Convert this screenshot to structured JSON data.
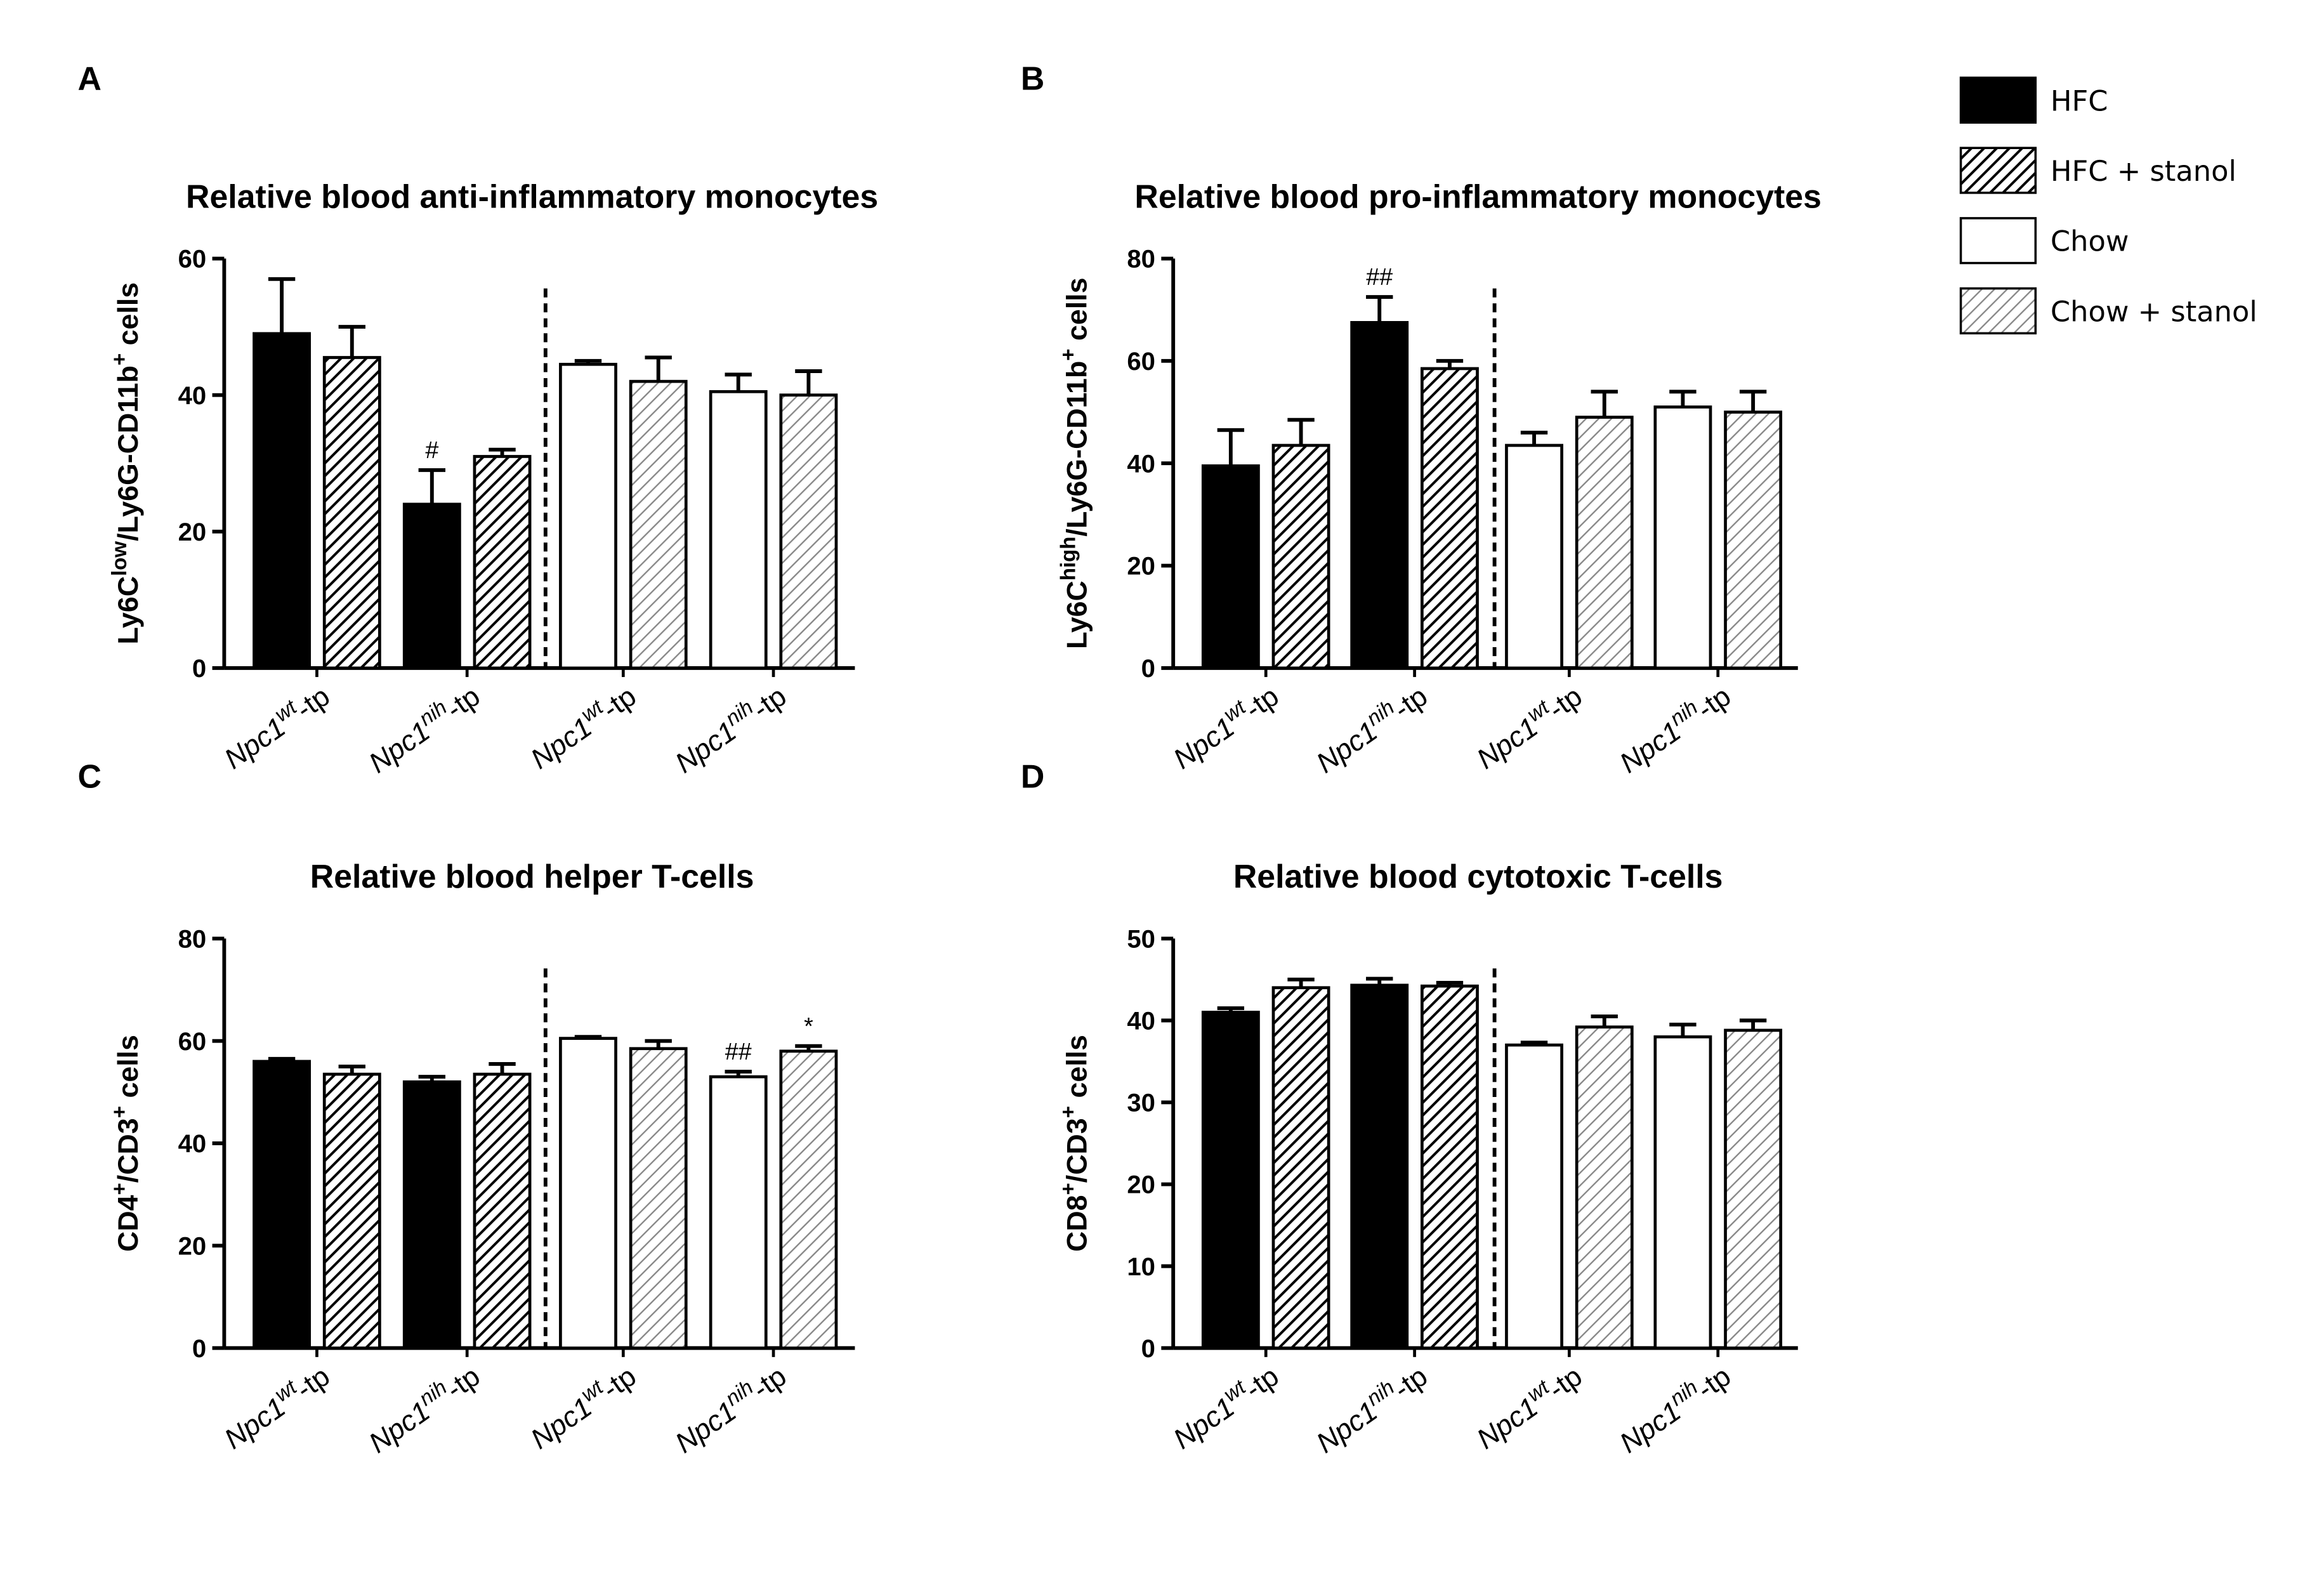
{
  "legend": [
    {
      "name": "HFC",
      "color": "#000000",
      "hatch": false
    },
    {
      "name": "HFC + stanol",
      "color": "#000000",
      "hatch": true
    },
    {
      "name": "Chow",
      "color": "#ffffff",
      "hatch": false
    },
    {
      "name": "Chow + stanol",
      "color": "#888888",
      "hatch": true
    }
  ],
  "chart_data": [
    {
      "type": "bar",
      "panel": "A",
      "title": "Relative blood anti-inflammatory monocytes",
      "ylabel": [
        {
          "text": "Ly6C"
        },
        {
          "text": "low",
          "sup": true
        },
        {
          "text": "/Ly6G-CD11b"
        },
        {
          "text": "+",
          "sup": true
        },
        {
          "text": " cells"
        }
      ],
      "categories": [
        {
          "gene": "Npc1",
          "allele": "wt",
          "suffix": "-tp"
        },
        {
          "gene": "Npc1",
          "allele": "nih",
          "suffix": "-tp"
        },
        {
          "gene": "Npc1",
          "allele": "wt",
          "suffix": "-tp"
        },
        {
          "gene": "Npc1",
          "allele": "nih",
          "suffix": "-tp"
        }
      ],
      "ylim": [
        0,
        60
      ],
      "yticks": [
        0,
        20,
        40,
        60
      ],
      "series": [
        {
          "values": [
            49,
            24,
            null,
            null
          ],
          "errors": [
            8,
            5,
            null,
            null
          ],
          "markers": [
            null,
            "#",
            null,
            null
          ]
        },
        {
          "values": [
            45.5,
            31,
            null,
            null
          ],
          "errors": [
            4.5,
            1,
            null,
            null
          ],
          "markers": [
            null,
            null,
            null,
            null
          ]
        },
        {
          "values": [
            null,
            null,
            44.5,
            40.5
          ],
          "errors": [
            null,
            null,
            0.5,
            2.5
          ],
          "markers": [
            null,
            null,
            null,
            null
          ]
        },
        {
          "values": [
            null,
            null,
            42,
            40
          ],
          "errors": [
            null,
            null,
            3.5,
            3.5
          ],
          "markers": [
            null,
            null,
            null,
            null
          ]
        }
      ]
    },
    {
      "type": "bar",
      "panel": "B",
      "title": "Relative blood pro-inflammatory monocytes",
      "ylabel": [
        {
          "text": "Ly6C"
        },
        {
          "text": "high",
          "sup": true
        },
        {
          "text": "/Ly6G-CD11b"
        },
        {
          "text": "+",
          "sup": true
        },
        {
          "text": " cells"
        }
      ],
      "categories": [
        {
          "gene": "Npc1",
          "allele": "wt",
          "suffix": "-tp"
        },
        {
          "gene": "Npc1",
          "allele": "nih",
          "suffix": "-tp"
        },
        {
          "gene": "Npc1",
          "allele": "wt",
          "suffix": "-tp"
        },
        {
          "gene": "Npc1",
          "allele": "nih",
          "suffix": "-tp"
        }
      ],
      "ylim": [
        0,
        80
      ],
      "yticks": [
        0,
        20,
        40,
        60,
        80
      ],
      "series": [
        {
          "values": [
            39.5,
            67.5,
            null,
            null
          ],
          "errors": [
            7,
            5,
            null,
            null
          ],
          "markers": [
            null,
            "##",
            null,
            null
          ]
        },
        {
          "values": [
            43.5,
            58.5,
            null,
            null
          ],
          "errors": [
            5,
            1.5,
            null,
            null
          ],
          "markers": [
            null,
            null,
            null,
            null
          ]
        },
        {
          "values": [
            null,
            null,
            43.5,
            51
          ],
          "errors": [
            null,
            null,
            2.5,
            3
          ],
          "markers": [
            null,
            null,
            null,
            null
          ]
        },
        {
          "values": [
            null,
            null,
            49,
            50
          ],
          "errors": [
            null,
            null,
            5,
            4
          ],
          "markers": [
            null,
            null,
            null,
            null
          ]
        }
      ]
    },
    {
      "type": "bar",
      "panel": "C",
      "title": "Relative blood helper T-cells",
      "ylabel": [
        {
          "text": "CD4"
        },
        {
          "text": "+",
          "sup": true
        },
        {
          "text": "/CD3"
        },
        {
          "text": "+",
          "sup": true
        },
        {
          "text": " cells"
        }
      ],
      "categories": [
        {
          "gene": "Npc1",
          "allele": "wt",
          "suffix": "-tp"
        },
        {
          "gene": "Npc1",
          "allele": "nih",
          "suffix": "-tp"
        },
        {
          "gene": "Npc1",
          "allele": "wt",
          "suffix": "-tp"
        },
        {
          "gene": "Npc1",
          "allele": "nih",
          "suffix": "-tp"
        }
      ],
      "ylim": [
        0,
        80
      ],
      "yticks": [
        0,
        20,
        40,
        60,
        80
      ],
      "series": [
        {
          "values": [
            56,
            52,
            null,
            null
          ],
          "errors": [
            0.5,
            1,
            null,
            null
          ],
          "markers": [
            null,
            null,
            null,
            null
          ]
        },
        {
          "values": [
            53.5,
            53.5,
            null,
            null
          ],
          "errors": [
            1.5,
            2,
            null,
            null
          ],
          "markers": [
            null,
            null,
            null,
            null
          ]
        },
        {
          "values": [
            null,
            null,
            60.5,
            53
          ],
          "errors": [
            null,
            null,
            0.3,
            1
          ],
          "markers": [
            null,
            null,
            null,
            "##"
          ]
        },
        {
          "values": [
            null,
            null,
            58.5,
            58
          ],
          "errors": [
            null,
            null,
            1.5,
            1
          ],
          "markers": [
            null,
            null,
            null,
            "*"
          ]
        }
      ]
    },
    {
      "type": "bar",
      "panel": "D",
      "title": "Relative blood cytotoxic T-cells",
      "ylabel": [
        {
          "text": "CD8"
        },
        {
          "text": "+",
          "sup": true
        },
        {
          "text": "/CD3"
        },
        {
          "text": "+",
          "sup": true
        },
        {
          "text": " cells"
        }
      ],
      "categories": [
        {
          "gene": "Npc1",
          "allele": "wt",
          "suffix": "-tp"
        },
        {
          "gene": "Npc1",
          "allele": "nih",
          "suffix": "-tp"
        },
        {
          "gene": "Npc1",
          "allele": "wt",
          "suffix": "-tp"
        },
        {
          "gene": "Npc1",
          "allele": "nih",
          "suffix": "-tp"
        }
      ],
      "ylim": [
        0,
        50
      ],
      "yticks": [
        0,
        10,
        20,
        30,
        40,
        50
      ],
      "series": [
        {
          "values": [
            41,
            44.3,
            null,
            null
          ],
          "errors": [
            0.5,
            0.8,
            null,
            null
          ],
          "markers": [
            null,
            null,
            null,
            null
          ]
        },
        {
          "values": [
            44,
            44.2,
            null,
            null
          ],
          "errors": [
            1,
            0.4,
            null,
            null
          ],
          "markers": [
            null,
            null,
            null,
            null
          ]
        },
        {
          "values": [
            null,
            null,
            37,
            38
          ],
          "errors": [
            null,
            null,
            0.3,
            1.5
          ],
          "markers": [
            null,
            null,
            null,
            null
          ]
        },
        {
          "values": [
            null,
            null,
            39.2,
            38.8
          ],
          "errors": [
            null,
            null,
            1.3,
            1.2
          ],
          "markers": [
            null,
            null,
            null,
            null
          ]
        }
      ]
    }
  ]
}
